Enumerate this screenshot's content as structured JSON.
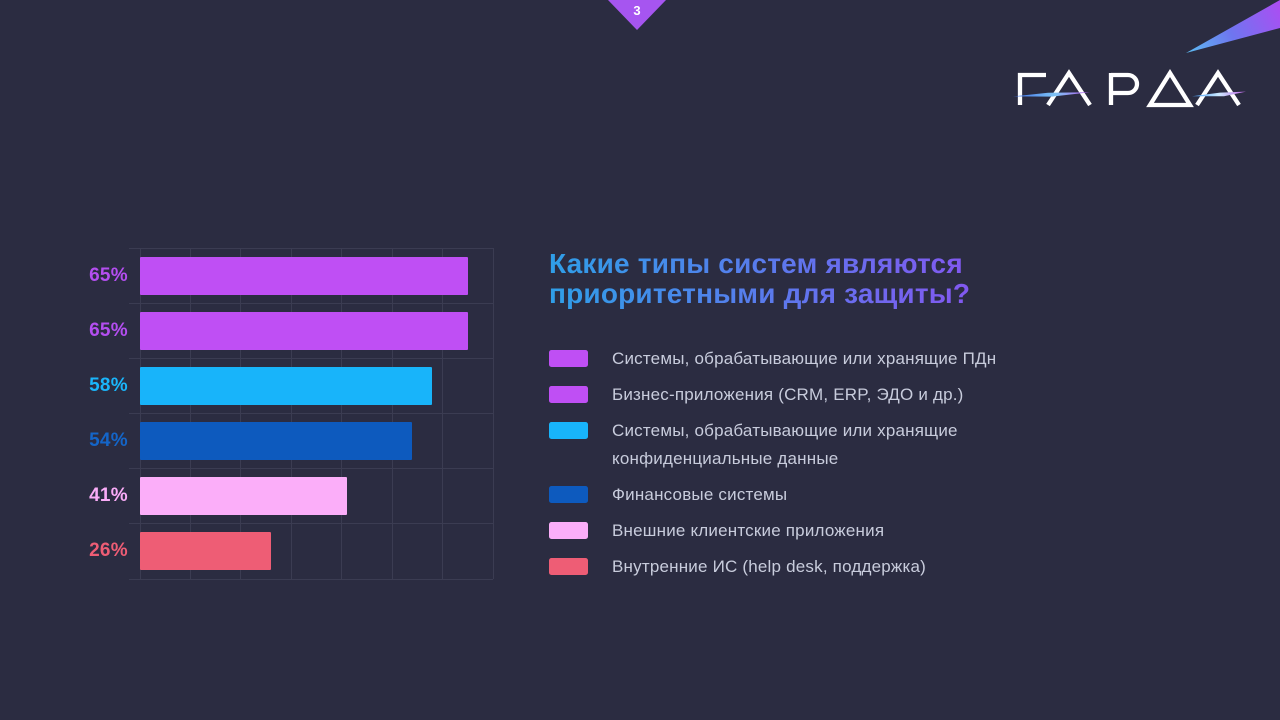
{
  "page": {
    "number": "3",
    "background": "#2b2c41",
    "ribbon_color": "#a655f0"
  },
  "brand": {
    "logo_text": "ГАРДА",
    "streak_gradient": [
      "#5cbdf2",
      "#6e76f0",
      "#ae4cf2"
    ],
    "logo_dash1_gradient": [
      "#3c6fe8",
      "#7fc4f5",
      "#b455ee"
    ],
    "logo_dash2_gradient": [
      "#3f9af5",
      "#cdeaff",
      "#c05fe8"
    ]
  },
  "title": {
    "lines": [
      "Какие типы систем являются",
      "приоритетными для защиты?"
    ],
    "gradient_from": "#2f9fe8",
    "gradient_to": "#8258f0"
  },
  "chart_data": {
    "type": "bar",
    "orientation": "horizontal",
    "title": "Какие типы систем являются приоритетными для защиты?",
    "unit": "%",
    "xlim": [
      0,
      70
    ],
    "grid": true,
    "gridline_step_percent": 10,
    "gridline_color": "#3b3c52",
    "legend_position": "right",
    "legend_text_color": "#c8ccdc",
    "categories": [
      "Системы, обрабатывающие или хранящие ПДн",
      "Бизнес-приложения (CRM, ERP, ЭДО и др.)",
      "Системы, обрабатывающие или хранящие конфиденциальные данные",
      "Финансовые системы",
      "Внешние клиентские приложения",
      "Внутренние ИС (help desk, поддержка)"
    ],
    "values": [
      65,
      65,
      58,
      54,
      41,
      26
    ],
    "value_labels": [
      "65%",
      "65%",
      "58%",
      "54%",
      "41%",
      "26%"
    ],
    "bar_colors": [
      "#bf4ff4",
      "#bf4ff4",
      "#18b4fa",
      "#0d5abe",
      "#fbaef9",
      "#ee5d75"
    ],
    "value_label_colors": [
      "#b44ef0",
      "#b44ef0",
      "#1ab5fa",
      "#1465c8",
      "#f9acf7",
      "#ee5d75"
    ]
  }
}
